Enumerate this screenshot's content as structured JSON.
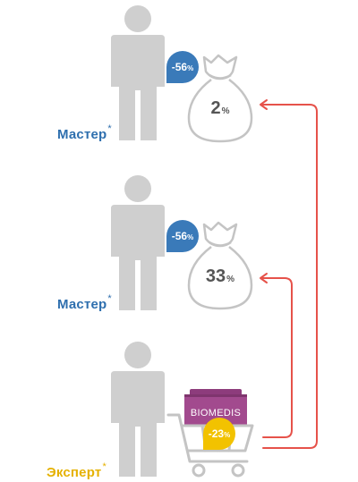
{
  "levels": [
    {
      "label": "Мастер",
      "asterisk": "*",
      "discount": "-56",
      "discount_unit": "%",
      "bag_value": "2",
      "bag_unit": "%"
    },
    {
      "label": "Мастер",
      "asterisk": "*",
      "discount": "-56",
      "discount_unit": "%",
      "bag_value": "33",
      "bag_unit": "%"
    },
    {
      "label": "Эксперт",
      "asterisk": "*",
      "discount": "-23",
      "discount_unit": "%",
      "product_label": "BIOMEDIS"
    }
  ],
  "colors": {
    "master": "#2e6fae",
    "master_badge": "#3a7ab9",
    "expert": "#e5b100",
    "expert_badge": "#f2c200",
    "person": "#cfcfcf",
    "outline": "#c4c4c4",
    "arrow": "#e6524a",
    "product": "#a24a8e"
  },
  "icons": [
    "person-icon",
    "money-bag-icon",
    "shopping-cart-icon",
    "product-box-icon",
    "arrow-icon"
  ]
}
